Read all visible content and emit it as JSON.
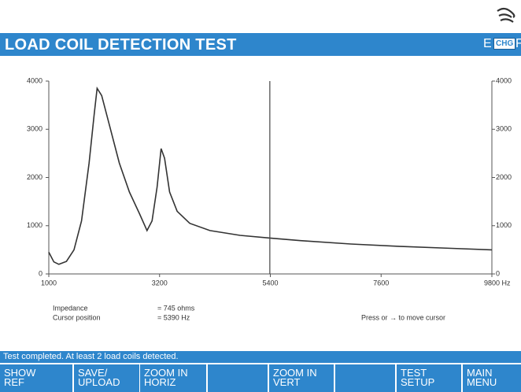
{
  "header": {
    "title": "LOAD COIL DETECTION TEST",
    "indicators": [
      "E",
      "CHG",
      "F"
    ]
  },
  "chart_data": {
    "type": "line",
    "x": [
      1000,
      1100,
      1200,
      1350,
      1500,
      1650,
      1800,
      1900,
      1960,
      2050,
      2200,
      2400,
      2600,
      2800,
      2950,
      3050,
      3150,
      3230,
      3300,
      3400,
      3550,
      3800,
      4200,
      4800,
      5390,
      6000,
      7000,
      8000,
      9000,
      9800
    ],
    "values": [
      450,
      250,
      200,
      260,
      500,
      1100,
      2300,
      3300,
      3850,
      3700,
      3100,
      2300,
      1700,
      1250,
      900,
      1100,
      1800,
      2600,
      2400,
      1700,
      1300,
      1050,
      900,
      800,
      745,
      690,
      620,
      570,
      530,
      500
    ],
    "color": "#333333",
    "xlim": [
      1000,
      9800
    ],
    "xticks": [
      1000,
      3200,
      5400,
      7600,
      9800
    ],
    "ylim": [
      0,
      4000
    ],
    "yticks": [
      0,
      1000,
      2000,
      3000,
      4000
    ],
    "x_unit": "Hz",
    "cursor_x": 5390
  },
  "readout": [
    {
      "label": "Impedance",
      "value": "= 745  ohms"
    },
    {
      "label": "Cursor position",
      "value": "= 5390 Hz"
    }
  ],
  "hint": "Press or → to move cursor",
  "status": "Test completed. At least 2 load coils detected.",
  "softkeys": [
    [
      "SHOW",
      "REF"
    ],
    [
      "SAVE/",
      "UPLOAD"
    ],
    [
      "ZOOM IN",
      "HORIZ"
    ],
    [
      "ZOOM IN",
      "VERT"
    ],
    [
      "TEST",
      "SETUP"
    ],
    [
      "MAIN",
      "MENU"
    ]
  ]
}
